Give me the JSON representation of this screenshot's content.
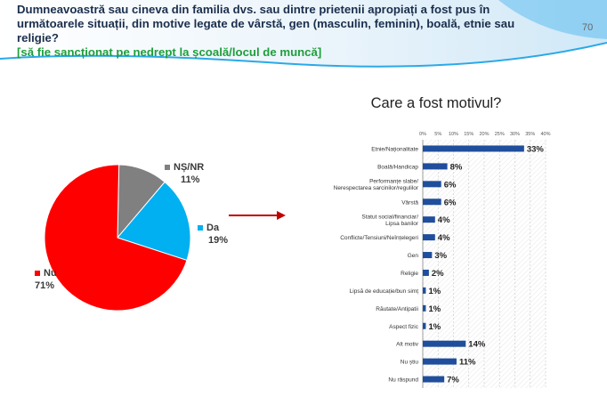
{
  "header": {
    "question_lines": [
      "Dumneavoastră sau cineva din familia dvs. sau dintre prietenii apropiați a fost pus în",
      "următoarele situații, din motive legate de vârstă, gen (masculin, feminin), boală, etnie sau",
      "religie?",
      "[să fie sancționat pe nedrept la școală/locul de muncă]"
    ],
    "page_number": "70"
  },
  "colors": {
    "nu": "#ff0000",
    "da": "#00b0f0",
    "nsnr": "#808080",
    "bar": "#1f4e9c",
    "header_accent": "#1aa3ec"
  },
  "chart_data": [
    {
      "type": "pie",
      "slices": [
        {
          "name": "Nu",
          "value": 71,
          "label": "71%"
        },
        {
          "name": "Da",
          "value": 19,
          "label": "19%"
        },
        {
          "name": "NȘ/NR",
          "value": 11,
          "label": "11%"
        }
      ]
    },
    {
      "type": "bar",
      "orientation": "horizontal",
      "title": "Care a fost motivul?",
      "xlim": [
        0,
        40
      ],
      "ticks": [
        "0%",
        "5%",
        "10%",
        "15%",
        "20%",
        "25%",
        "30%",
        "35%",
        "40%"
      ],
      "categories": [
        "Etnie/Naționalitate",
        "Boală/Handicap",
        "Performanțe slabe/Nerespectarea sarcinilor/regulilor",
        "Vârstă",
        "Statut social/financiar/Lipsa banilor",
        "Conflicte/Tensiuni/Neînțelegeri",
        "Gen",
        "Religie",
        "Lipsă de educație/bun simț",
        "Răutate/Antipatii",
        "Aspect fizic",
        "Alt motiv",
        "Nu știu",
        "Nu răspund"
      ],
      "values": [
        33,
        8,
        6,
        6,
        4,
        4,
        3,
        2,
        1,
        1,
        1,
        14,
        11,
        7
      ],
      "labels": [
        "33%",
        "8%",
        "6%",
        "6%",
        "4%",
        "4%",
        "3%",
        "2%",
        "1%",
        "1%",
        "1%",
        "14%",
        "11%",
        "7%"
      ],
      "grid": true
    }
  ]
}
